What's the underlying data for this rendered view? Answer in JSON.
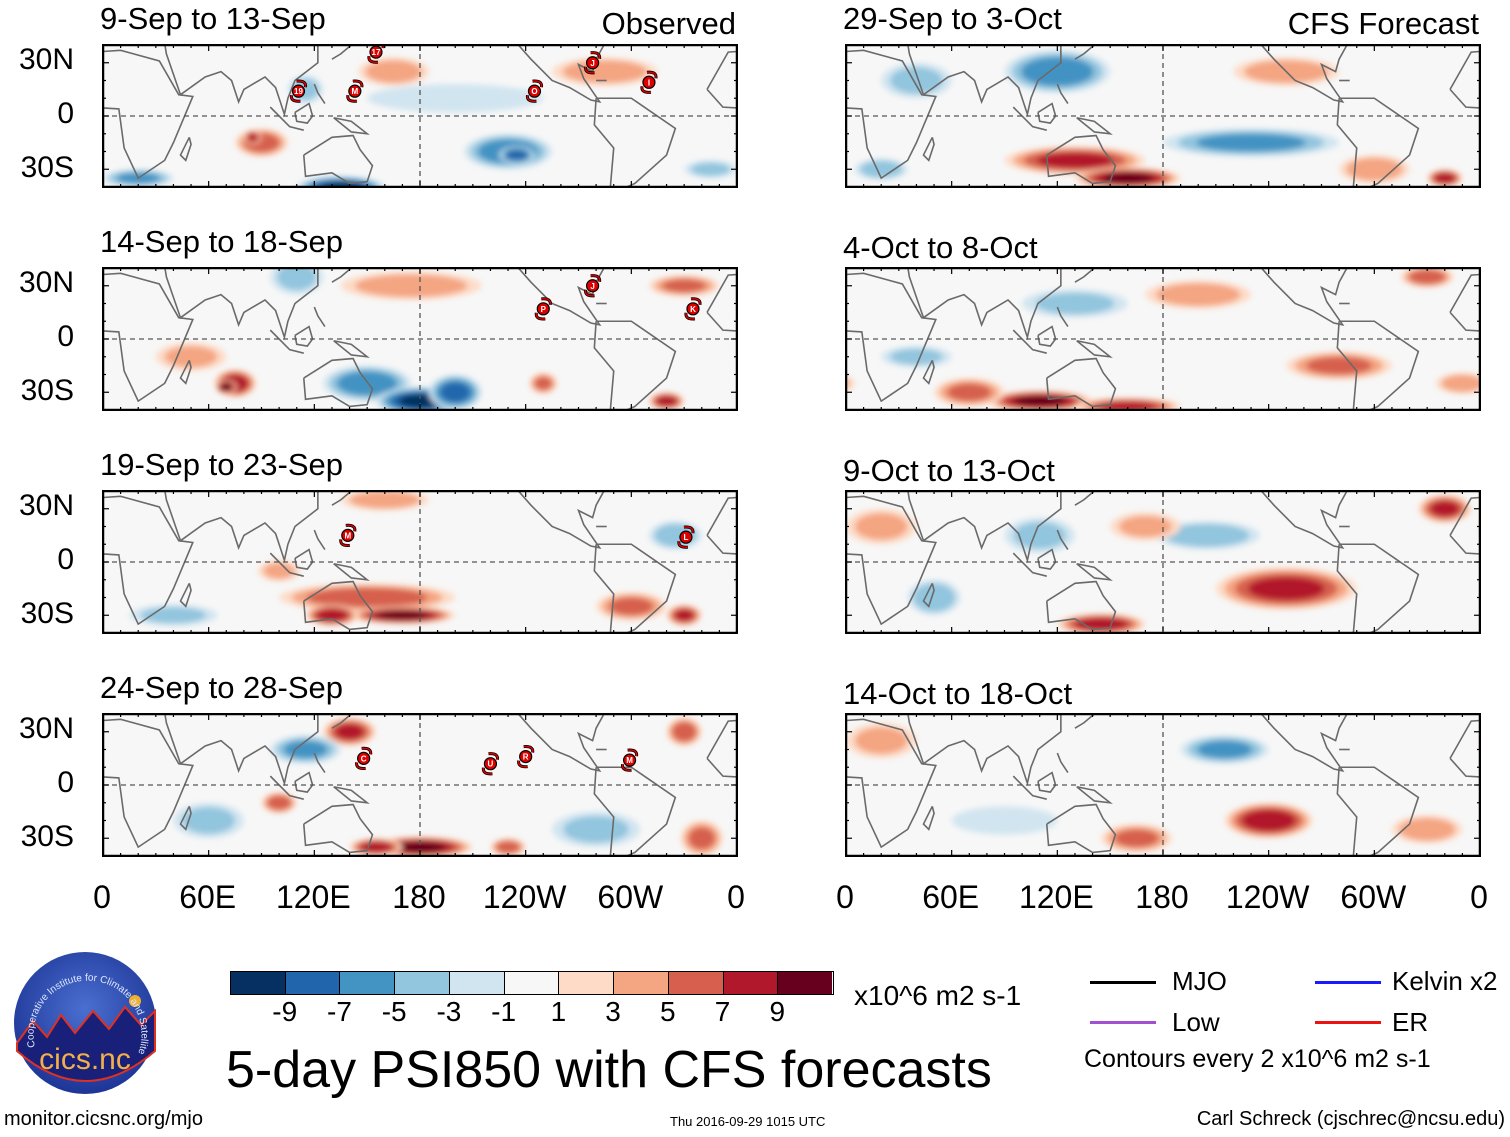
{
  "figure_title": "5-day PSI850 with CFS forecasts",
  "column_labels": {
    "left": "Observed",
    "right": "CFS Forecast"
  },
  "y_ticks": [
    "30N",
    "0",
    "30S"
  ],
  "x_ticks": [
    "0",
    "60E",
    "120E",
    "180",
    "120W",
    "60W",
    "0"
  ],
  "colorbar": {
    "colors": [
      "#053061",
      "#2166ac",
      "#4393c3",
      "#92c5de",
      "#d1e5f0",
      "#f7f7f7",
      "#fddbc7",
      "#f4a582",
      "#d6604d",
      "#b2182b",
      "#67001f"
    ],
    "labels": [
      "-9",
      "-7",
      "-5",
      "-3",
      "-1",
      "1",
      "3",
      "5",
      "7",
      "9"
    ],
    "units": "x10^6 m2 s-1"
  },
  "legend": {
    "items": [
      {
        "label": "MJO",
        "color": "#000000"
      },
      {
        "label": "Kelvin x2",
        "color": "#1a1aff"
      },
      {
        "label": "Low",
        "color": "#a050d0"
      },
      {
        "label": "ER",
        "color": "#ee1111"
      }
    ],
    "contour_note": "Contours every 2 x10^6 m2 s-1"
  },
  "footer": {
    "url": "monitor.cicsnc.org/mjo",
    "timestamp": "Thu 2016-09-29 1015 UTC",
    "author": "Carl Schreck (cjschrec@ncsu.edu)"
  },
  "logo": {
    "text": "cics.nc",
    "ring_text": "Cooperative Institute for Climate and Satellites"
  },
  "chart_data": {
    "type": "heatmap",
    "variable": "850-hPa streamfunction anomaly (5-day mean)",
    "units": "x10^6 m2 s-1",
    "lon_range": [
      0,
      360
    ],
    "lat_range": [
      -40,
      40
    ],
    "panels": [
      {
        "title": "9-Sep to 13-Sep",
        "kind": "observed",
        "anomalies": [
          [
            90,
            -15,
            6,
            15,
            8
          ],
          [
            85,
            -12,
            8,
            5,
            4
          ],
          [
            230,
            -20,
            -6,
            25,
            10
          ],
          [
            235,
            -22,
            -8,
            10,
            5
          ],
          [
            135,
            -40,
            -9,
            25,
            6
          ],
          [
            165,
            25,
            4,
            20,
            8
          ],
          [
            285,
            25,
            4,
            30,
            8
          ],
          [
            115,
            15,
            -3,
            10,
            8
          ],
          [
            20,
            -35,
            -5,
            20,
            5
          ],
          [
            345,
            -30,
            -3,
            15,
            5
          ],
          [
            200,
            10,
            -2,
            50,
            8
          ]
        ],
        "storms": [
          {
            "label": "17",
            "lon": 155,
            "lat": 36
          },
          {
            "label": "19",
            "lon": 111,
            "lat": 14
          },
          {
            "label": "M",
            "lon": 143,
            "lat": 14
          },
          {
            "label": "O",
            "lon": 245,
            "lat": 14
          },
          {
            "label": "J",
            "lon": 278,
            "lat": 30
          },
          {
            "label": "I",
            "lon": 310,
            "lat": 19
          }
        ]
      },
      {
        "title": "14-Sep to 18-Sep",
        "kind": "observed",
        "anomalies": [
          [
            75,
            -25,
            8,
            12,
            8
          ],
          [
            70,
            -27,
            10,
            6,
            4
          ],
          [
            150,
            -25,
            -6,
            25,
            10
          ],
          [
            180,
            -35,
            -9,
            25,
            8
          ],
          [
            200,
            -30,
            -7,
            15,
            10
          ],
          [
            250,
            -25,
            5,
            8,
            6
          ],
          [
            320,
            -35,
            8,
            10,
            5
          ],
          [
            175,
            30,
            4,
            40,
            8
          ],
          [
            110,
            35,
            -3,
            15,
            10
          ],
          [
            330,
            30,
            5,
            20,
            6
          ],
          [
            50,
            -10,
            3,
            20,
            8
          ]
        ],
        "storms": [
          {
            "label": "P",
            "lon": 250,
            "lat": 17
          },
          {
            "label": "J",
            "lon": 278,
            "lat": 30
          },
          {
            "label": "K",
            "lon": 335,
            "lat": 17
          }
        ]
      },
      {
        "title": "19-Sep to 23-Sep",
        "kind": "observed",
        "anomalies": [
          [
            150,
            -20,
            6,
            50,
            8
          ],
          [
            170,
            -30,
            9,
            30,
            5
          ],
          [
            130,
            -30,
            8,
            15,
            6
          ],
          [
            300,
            -25,
            5,
            20,
            8
          ],
          [
            330,
            -30,
            7,
            10,
            6
          ],
          [
            325,
            15,
            -4,
            15,
            8
          ],
          [
            100,
            -5,
            3,
            12,
            6
          ],
          [
            160,
            35,
            4,
            25,
            6
          ],
          [
            40,
            -30,
            -3,
            25,
            6
          ]
        ],
        "storms": [
          {
            "label": "M",
            "lon": 139,
            "lat": 15
          },
          {
            "label": "L",
            "lon": 331,
            "lat": 14
          }
        ]
      },
      {
        "title": "24-Sep to 28-Sep",
        "kind": "observed",
        "anomalies": [
          [
            140,
            30,
            7,
            15,
            8
          ],
          [
            115,
            20,
            -5,
            20,
            8
          ],
          [
            100,
            -10,
            6,
            10,
            6
          ],
          [
            180,
            -35,
            9,
            30,
            6
          ],
          [
            155,
            -35,
            8,
            15,
            5
          ],
          [
            230,
            -35,
            6,
            10,
            5
          ],
          [
            330,
            30,
            6,
            10,
            8
          ],
          [
            340,
            -30,
            5,
            12,
            10
          ],
          [
            60,
            -20,
            -3,
            20,
            10
          ],
          [
            280,
            -25,
            -3,
            25,
            10
          ]
        ],
        "storms": [
          {
            "label": "C",
            "lon": 148,
            "lat": 15
          },
          {
            "label": "U",
            "lon": 220,
            "lat": 12
          },
          {
            "label": "R",
            "lon": 240,
            "lat": 16
          },
          {
            "label": "M",
            "lon": 299,
            "lat": 14
          }
        ]
      },
      {
        "title": "29-Sep to 3-Oct",
        "kind": "forecast",
        "anomalies": [
          [
            120,
            25,
            -6,
            30,
            12
          ],
          [
            230,
            -15,
            -5,
            50,
            8
          ],
          [
            130,
            -25,
            7,
            40,
            8
          ],
          [
            160,
            -35,
            9,
            30,
            6
          ],
          [
            340,
            -35,
            8,
            10,
            5
          ],
          [
            250,
            25,
            4,
            30,
            8
          ],
          [
            40,
            20,
            -3,
            20,
            10
          ],
          [
            300,
            -30,
            4,
            20,
            8
          ],
          [
            20,
            -30,
            -4,
            15,
            6
          ]
        ],
        "storms": []
      },
      {
        "title": "4-Oct to 8-Oct",
        "kind": "forecast",
        "anomalies": [
          [
            110,
            -35,
            9,
            30,
            6
          ],
          [
            160,
            -38,
            7,
            30,
            5
          ],
          [
            70,
            -30,
            5,
            20,
            8
          ],
          [
            280,
            -15,
            5,
            30,
            8
          ],
          [
            330,
            35,
            6,
            15,
            6
          ],
          [
            130,
            20,
            -3,
            30,
            8
          ],
          [
            200,
            25,
            4,
            30,
            8
          ],
          [
            40,
            -10,
            -3,
            20,
            6
          ],
          [
            350,
            -25,
            4,
            15,
            6
          ]
        ],
        "storms": []
      },
      {
        "title": "9-Oct to 13-Oct",
        "kind": "forecast",
        "anomalies": [
          [
            250,
            -15,
            7,
            40,
            12
          ],
          [
            145,
            -35,
            8,
            25,
            6
          ],
          [
            340,
            30,
            7,
            15,
            8
          ],
          [
            205,
            15,
            -4,
            30,
            8
          ],
          [
            50,
            -20,
            -4,
            15,
            10
          ],
          [
            110,
            15,
            -3,
            20,
            10
          ],
          [
            20,
            20,
            3,
            20,
            10
          ],
          [
            170,
            20,
            3,
            20,
            8
          ]
        ],
        "storms": []
      },
      {
        "title": "14-Oct to 18-Oct",
        "kind": "forecast",
        "anomalies": [
          [
            240,
            -20,
            8,
            25,
            10
          ],
          [
            215,
            20,
            -5,
            25,
            8
          ],
          [
            165,
            -30,
            5,
            20,
            8
          ],
          [
            330,
            -25,
            4,
            20,
            8
          ],
          [
            20,
            25,
            3,
            20,
            10
          ],
          [
            90,
            -20,
            -2,
            30,
            8
          ]
        ],
        "storms": []
      }
    ]
  }
}
